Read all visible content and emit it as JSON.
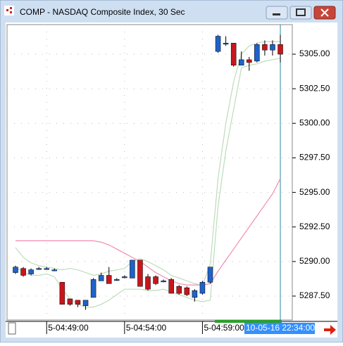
{
  "window": {
    "title": "COMP - NASDAQ Composite Index, 30 Sec"
  },
  "chart_data": {
    "type": "candlestick",
    "categories": [
      null,
      null,
      null,
      null,
      "5-04:49:00",
      null,
      null,
      null,
      null,
      null,
      null,
      null,
      null,
      null,
      "5-04:54:00",
      null,
      null,
      null,
      null,
      null,
      null,
      null,
      null,
      null,
      "5-04:59:00",
      null,
      null,
      null,
      null,
      null,
      null,
      null,
      null,
      null,
      null
    ],
    "cursor_label": "10-05-16 22:34:00",
    "up_color": "#1f62c9",
    "down_color": "#c8161c",
    "open": [
      5289.2,
      5289.5,
      5289.1,
      5289.5,
      5289.5,
      5289.4,
      5288.5,
      5287.3,
      5287.2,
      5286.8,
      5287.4,
      5288.6,
      5289.0,
      5288.7,
      5288.9,
      5288.8,
      5290.1,
      5288.9,
      5288.9,
      5288.6,
      5288.7,
      5288.2,
      5288.1,
      5287.4,
      5287.7,
      5288.5,
      5305.2,
      5305.8,
      5305.8,
      5304.2,
      5304.6,
      5304.5,
      5305.7,
      5305.3,
      5305.7
    ],
    "high": [
      5289.7,
      5289.6,
      5289.5,
      5289.6,
      5289.6,
      5289.5,
      5288.5,
      5287.3,
      5287.2,
      5287.2,
      5288.8,
      5289.2,
      5289.6,
      5288.8,
      5289.0,
      5290.1,
      5290.1,
      5289.1,
      5289.0,
      5288.7,
      5288.8,
      5288.3,
      5288.2,
      5288.0,
      5288.6,
      5289.6,
      5306.4,
      5306.3,
      5305.8,
      5305.2,
      5304.8,
      5305.8,
      5306.0,
      5306.0,
      5306.4
    ],
    "low": [
      5289.1,
      5288.9,
      5289.0,
      5289.4,
      5289.4,
      5289.3,
      5286.9,
      5286.8,
      5286.7,
      5286.5,
      5287.4,
      5288.6,
      5288.4,
      5288.6,
      5288.8,
      5288.8,
      5288.2,
      5287.9,
      5288.3,
      5288.5,
      5287.7,
      5287.6,
      5287.5,
      5287.1,
      5287.6,
      5288.4,
      5305.1,
      5305.6,
      5304.1,
      5304.2,
      5303.8,
      5304.4,
      5304.9,
      5304.9,
      5304.4
    ],
    "close": [
      5289.6,
      5289.0,
      5289.4,
      5289.5,
      5289.5,
      5289.4,
      5286.9,
      5286.9,
      5286.9,
      5287.2,
      5288.7,
      5289.0,
      5288.4,
      5288.7,
      5288.9,
      5290.1,
      5288.2,
      5288.0,
      5288.4,
      5288.6,
      5287.7,
      5287.7,
      5287.6,
      5287.9,
      5288.5,
      5289.6,
      5306.3,
      5305.8,
      5304.2,
      5304.6,
      5304.4,
      5305.7,
      5305.3,
      5305.7,
      5305.0
    ],
    "overlays": [
      {
        "color": "#f08cb4",
        "values": [
          5291.5,
          5291.5,
          5291.5,
          5291.5,
          5291.5,
          5291.5,
          5291.5,
          5291.5,
          5291.5,
          5291.5,
          5291.5,
          5291.4,
          5291.2,
          5290.9,
          5290.6,
          5290.3,
          5290.0,
          5289.6,
          5289.2,
          5288.9,
          5288.6,
          5288.4,
          5288.3,
          5288.3,
          5288.3,
          5288.4,
          5289.3,
          5290.1,
          5290.9,
          5291.7,
          5292.5,
          5293.3,
          5294.1,
          5294.9,
          5296.0
        ]
      },
      {
        "color": "#bcdcbc",
        "values": [
          5291.0,
          5290.3,
          5289.9,
          5289.7,
          5289.6,
          5289.5,
          5289.4,
          5289.5,
          5289.4,
          5289.2,
          5289.0,
          5289.1,
          5289.3,
          5289.4,
          5289.5,
          5290.0,
          5290.2,
          5290.0,
          5289.7,
          5289.4,
          5289.0,
          5288.8,
          5288.6,
          5288.4,
          5288.3,
          5289.8,
          5296.0,
          5300.0,
          5303.0,
          5305.0,
          5305.6,
          5305.8,
          5305.9,
          5305.9,
          5305.9
        ]
      },
      {
        "color": "#bcdcbc",
        "values": [
          5289.6,
          5289.2,
          5289.0,
          5289.0,
          5289.1,
          5288.9,
          5288.0,
          5287.3,
          5286.9,
          5286.7,
          5286.7,
          5286.9,
          5287.2,
          5287.6,
          5288.0,
          5288.0,
          5288.0,
          5287.9,
          5287.9,
          5288.0,
          5287.8,
          5287.6,
          5287.4,
          5287.2,
          5287.1,
          5287.2,
          5294.0,
          5298.0,
          5301.0,
          5304.0,
          5304.2,
          5304.3,
          5304.5,
          5304.6,
          5304.7
        ]
      }
    ],
    "ylim": [
      5285.77,
      5307.14
    ],
    "yticks": [
      {
        "value": 5287.5,
        "label": "5287.50"
      },
      {
        "value": 5290,
        "label": "5290.00"
      },
      {
        "value": 5292.5,
        "label": "5292.50"
      },
      {
        "value": 5295,
        "label": "5295.00"
      },
      {
        "value": 5297.5,
        "label": "5297.50"
      },
      {
        "value": 5300,
        "label": "5300.00"
      },
      {
        "value": 5302.5,
        "label": "5302.50"
      },
      {
        "value": 5305,
        "label": "5305.00"
      }
    ],
    "grid": true
  }
}
